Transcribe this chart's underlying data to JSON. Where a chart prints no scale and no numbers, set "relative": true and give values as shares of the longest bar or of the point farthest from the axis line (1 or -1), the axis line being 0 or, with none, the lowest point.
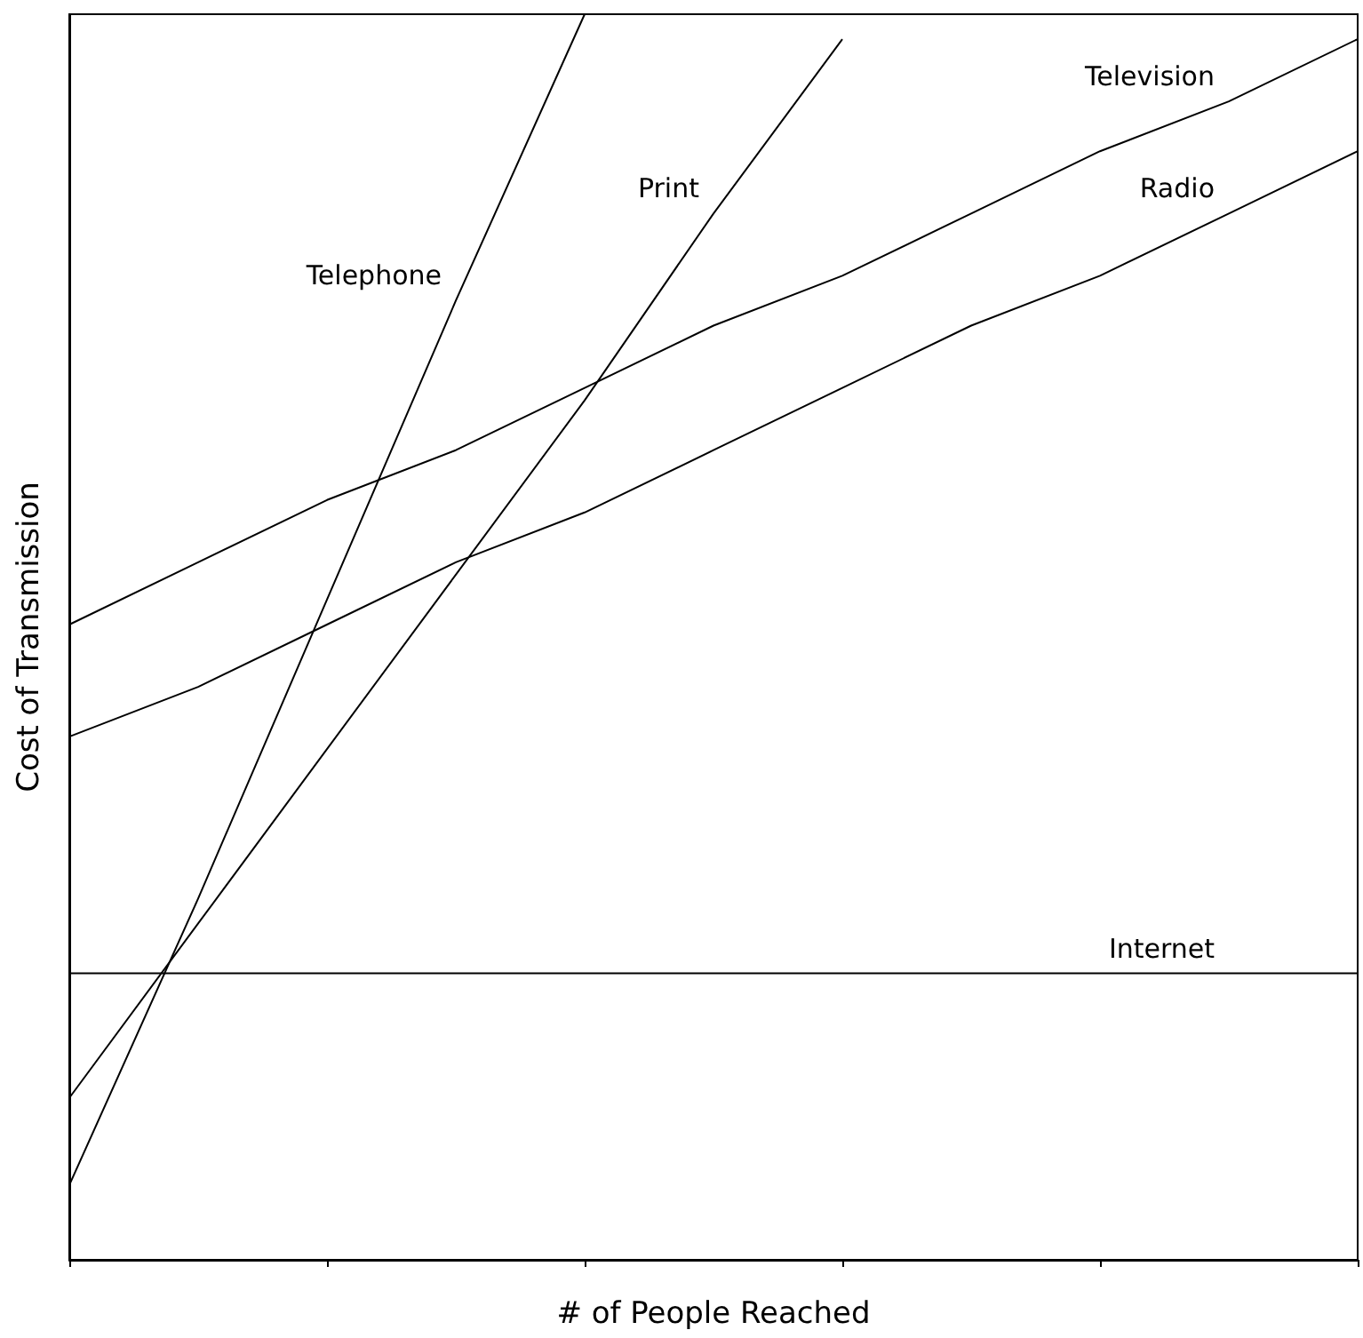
{
  "chart_data": {
    "type": "line",
    "xlabel": "# of People Reached",
    "ylabel": "Cost of Transmission",
    "relative": true,
    "categories": [
      null,
      null,
      null,
      null,
      null,
      null,
      null,
      null,
      null,
      null,
      null
    ],
    "series": [
      {
        "name": "Telephone",
        "color": "#000000",
        "values": [
          0.06,
          0.29,
          0.53,
          0.77,
          1.0,
          null,
          null,
          null,
          null,
          null,
          null
        ]
      },
      {
        "name": "Print",
        "color": "#000000",
        "values": [
          0.13,
          0.27,
          0.41,
          0.55,
          0.69,
          0.84,
          0.98,
          null,
          null,
          null,
          null
        ]
      },
      {
        "name": "Television",
        "color": "#000000",
        "values": [
          0.51,
          0.56,
          0.61,
          0.65,
          0.7,
          0.75,
          0.79,
          0.84,
          0.89,
          0.93,
          0.98
        ]
      },
      {
        "name": "Radio",
        "color": "#000000",
        "values": [
          0.42,
          0.46,
          0.51,
          0.56,
          0.6,
          0.65,
          0.7,
          0.75,
          0.79,
          0.84,
          0.89
        ]
      },
      {
        "name": "Internet",
        "color": "#000000",
        "values": [
          0.23,
          0.23,
          0.23,
          0.23,
          0.23,
          0.23,
          0.23,
          0.23,
          0.23,
          0.23,
          0.23
        ]
      }
    ]
  }
}
